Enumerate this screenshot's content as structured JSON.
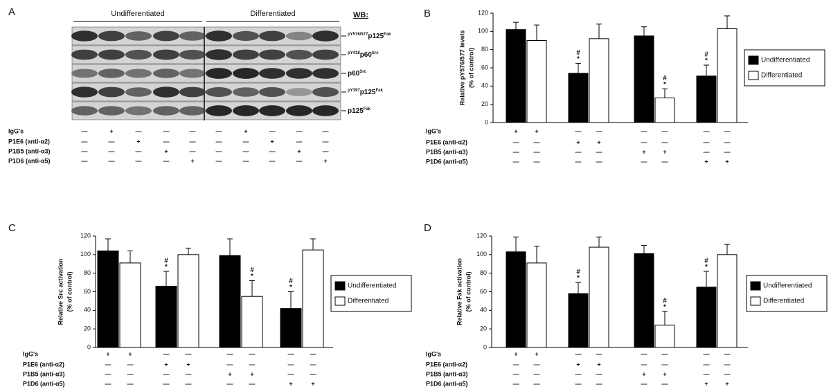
{
  "panel_a": {
    "label": "A",
    "groups": [
      "Undifferentiated",
      "Differentiated"
    ],
    "wb": "WB:",
    "blots": [
      {
        "sup": "pY576/577",
        "base": "p125",
        "post": "Fak"
      },
      {
        "sup": "pY418",
        "base": "p60",
        "post": "Src"
      },
      {
        "base": "p60",
        "post": "Src"
      },
      {
        "sup": "pY397",
        "base": "p125",
        "post": "Fak"
      },
      {
        "base": "p125",
        "post": "Fak"
      }
    ],
    "treatments": [
      {
        "name": "IgG's",
        "signs": [
          "—",
          "+",
          "—",
          "—",
          "—",
          "—",
          "+",
          "—",
          "—",
          "—"
        ]
      },
      {
        "name": "P1E6 (anti-α2)",
        "signs": [
          "—",
          "—",
          "+",
          "—",
          "—",
          "—",
          "—",
          "+",
          "—",
          "—"
        ]
      },
      {
        "name": "P1B5 (anti-α3)",
        "signs": [
          "—",
          "—",
          "—",
          "+",
          "—",
          "—",
          "—",
          "—",
          "+",
          "—"
        ]
      },
      {
        "name": "P1D6 (anti-α5)",
        "signs": [
          "—",
          "—",
          "—",
          "—",
          "+",
          "—",
          "—",
          "—",
          "—",
          "+"
        ]
      }
    ]
  },
  "chart_data": [
    {
      "type": "bar",
      "label": "B",
      "ylabel": [
        "Relative pY576/577 levels",
        "(% of control)"
      ],
      "ylim": [
        0,
        120
      ],
      "yticks": [
        0,
        20,
        40,
        60,
        80,
        100,
        120
      ],
      "series": [
        {
          "name": "Undifferentiated",
          "color": "#000000",
          "values": [
            102,
            54,
            95,
            51
          ],
          "errors": [
            8,
            11,
            10,
            12
          ],
          "annotations": [
            null,
            [
              "#",
              "*"
            ],
            null,
            [
              "#",
              "*"
            ]
          ]
        },
        {
          "name": "Differentiated",
          "color": "#ffffff",
          "values": [
            90,
            92,
            27,
            103
          ],
          "errors": [
            17,
            16,
            10,
            14
          ],
          "annotations": [
            null,
            null,
            [
              "#",
              "*"
            ],
            null
          ]
        }
      ],
      "treatments": [
        {
          "name": "IgG's",
          "signs": [
            "+",
            "+",
            "—",
            "—",
            "—",
            "—",
            "—",
            "—"
          ]
        },
        {
          "name": "P1E6 (anti-α2)",
          "signs": [
            "—",
            "—",
            "+",
            "+",
            "—",
            "—",
            "—",
            "—"
          ]
        },
        {
          "name": "P1B5 (anti-α3)",
          "signs": [
            "—",
            "—",
            "—",
            "—",
            "+",
            "+",
            "—",
            "—"
          ]
        },
        {
          "name": "P1D6 (anti-α5)",
          "signs": [
            "—",
            "—",
            "—",
            "—",
            "—",
            "—",
            "+",
            "+"
          ]
        }
      ]
    },
    {
      "type": "bar",
      "label": "C",
      "ylabel": [
        "Relative Src activation",
        "(% of control)"
      ],
      "ylim": [
        0,
        120
      ],
      "yticks": [
        0,
        20,
        40,
        60,
        80,
        100,
        120
      ],
      "series": [
        {
          "name": "Undifferentiated",
          "color": "#000000",
          "values": [
            104,
            66,
            99,
            42
          ],
          "errors": [
            13,
            16,
            18,
            18
          ],
          "annotations": [
            null,
            [
              "#",
              "*"
            ],
            null,
            [
              "#",
              "*"
            ]
          ]
        },
        {
          "name": "Differentiated",
          "color": "#ffffff",
          "values": [
            91,
            100,
            55,
            105
          ],
          "errors": [
            13,
            7,
            17,
            12
          ],
          "annotations": [
            null,
            null,
            [
              "#",
              "*"
            ],
            null
          ]
        }
      ],
      "treatments": [
        {
          "name": "IgG's",
          "signs": [
            "+",
            "+",
            "—",
            "—",
            "—",
            "—",
            "—",
            "—"
          ]
        },
        {
          "name": "P1E6 (anti-α2)",
          "signs": [
            "—",
            "—",
            "+",
            "+",
            "—",
            "—",
            "—",
            "—"
          ]
        },
        {
          "name": "P1B5 (anti-α3)",
          "signs": [
            "—",
            "—",
            "—",
            "—",
            "+",
            "+",
            "—",
            "—"
          ]
        },
        {
          "name": "P1D6 (anti-α5)",
          "signs": [
            "—",
            "—",
            "—",
            "—",
            "—",
            "—",
            "+",
            "+"
          ]
        }
      ]
    },
    {
      "type": "bar",
      "label": "D",
      "ylabel": [
        "Relative Fak activation",
        "(% of control)"
      ],
      "ylim": [
        0,
        120
      ],
      "yticks": [
        0,
        20,
        40,
        60,
        80,
        100,
        120
      ],
      "series": [
        {
          "name": "Undifferentiated",
          "color": "#000000",
          "values": [
            103,
            58,
            101,
            65
          ],
          "errors": [
            16,
            12,
            9,
            17
          ],
          "annotations": [
            null,
            [
              "#",
              "*"
            ],
            null,
            [
              "#",
              "*"
            ]
          ]
        },
        {
          "name": "Differentiated",
          "color": "#ffffff",
          "values": [
            91,
            108,
            24,
            100
          ],
          "errors": [
            18,
            11,
            15,
            11
          ],
          "annotations": [
            null,
            null,
            [
              "#",
              "*"
            ],
            null
          ]
        }
      ],
      "treatments": [
        {
          "name": "IgG's",
          "signs": [
            "+",
            "+",
            "—",
            "—",
            "—",
            "—",
            "—",
            "—"
          ]
        },
        {
          "name": "P1E6 (anti-α2)",
          "signs": [
            "—",
            "—",
            "+",
            "+",
            "—",
            "—",
            "—",
            "—"
          ]
        },
        {
          "name": "P1B5 (anti-α3)",
          "signs": [
            "—",
            "—",
            "—",
            "—",
            "+",
            "+",
            "—",
            "—"
          ]
        },
        {
          "name": "P1D6 (anti-α5)",
          "signs": [
            "—",
            "—",
            "—",
            "—",
            "—",
            "—",
            "+",
            "+"
          ]
        }
      ]
    }
  ]
}
